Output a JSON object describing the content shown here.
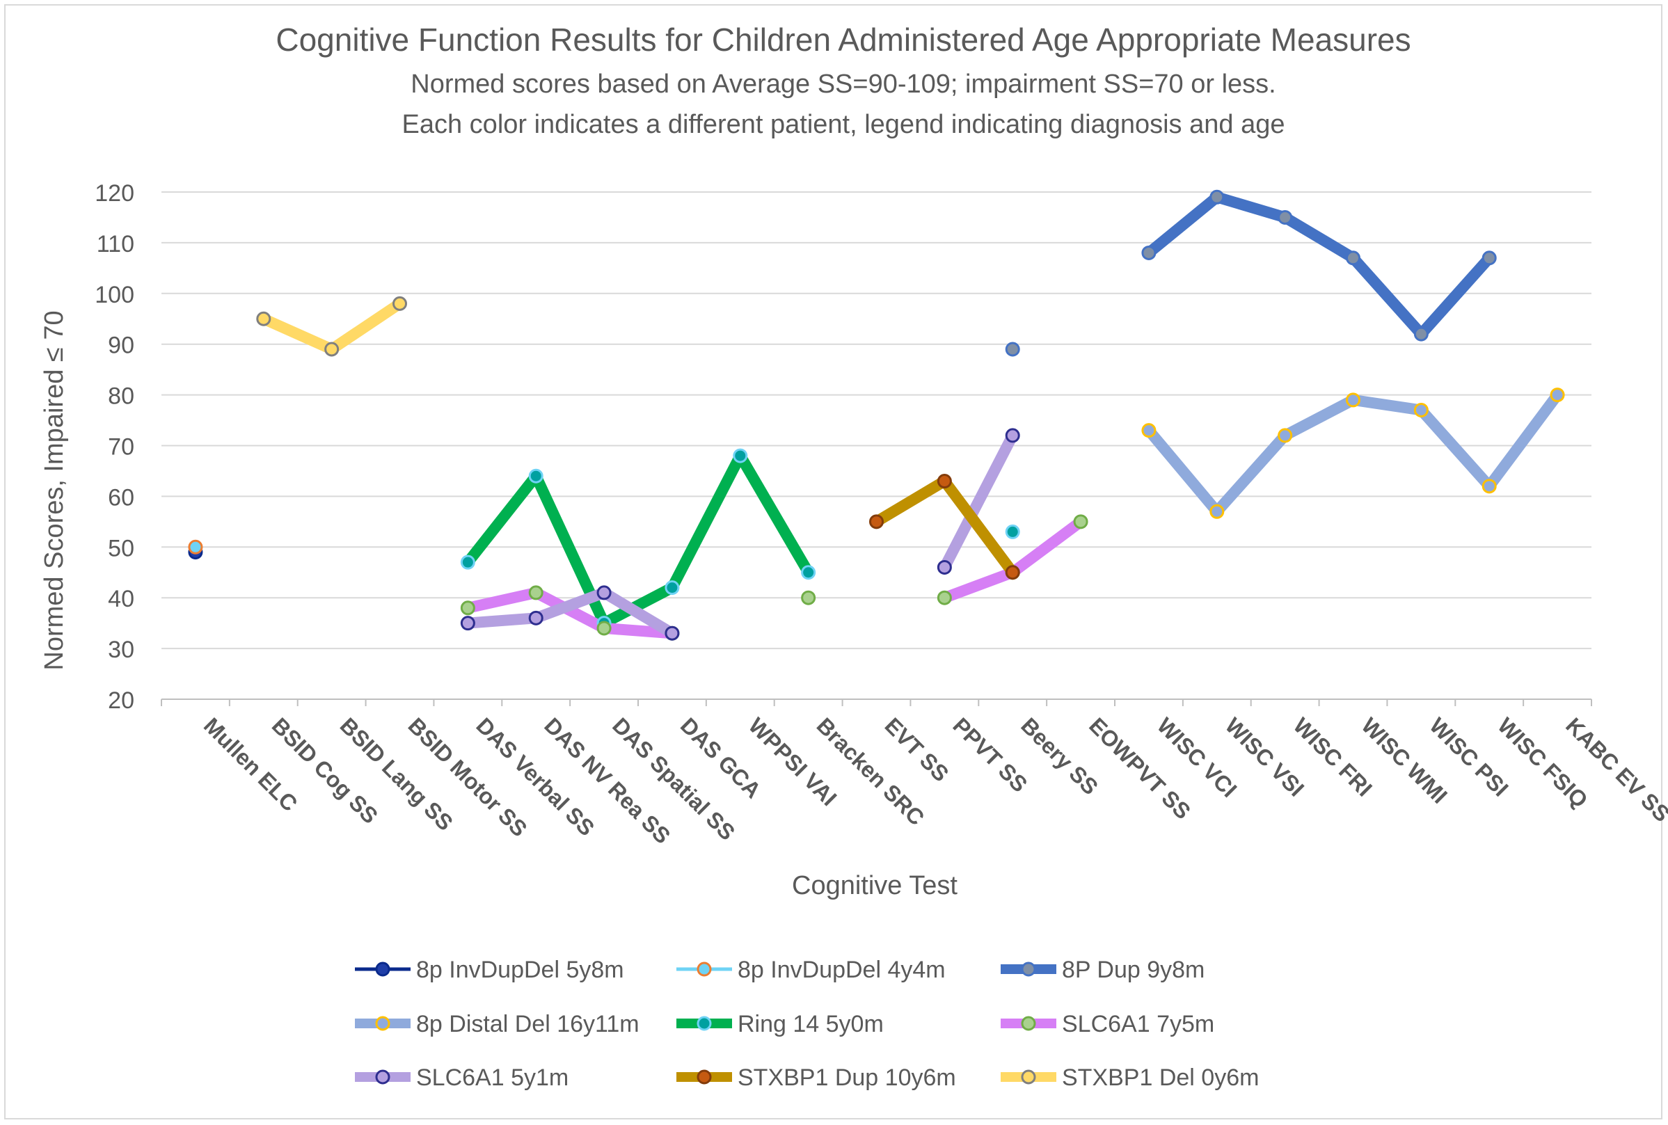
{
  "chart_data": {
    "type": "line",
    "title": "Cognitive Function Results for Children Administered Age Appropriate Measures",
    "subtitle_lines": [
      "Normed scores based on Average SS=90-109; impairment SS=70 or less.",
      "Each color indicates a different patient, legend indicating diagnosis and age"
    ],
    "xlabel": "Cognitive Test",
    "ylabel": "Normed Scores, Impaired ≤ 70",
    "ylim": [
      20,
      120
    ],
    "yticks": [
      "20",
      "30",
      "40",
      "50",
      "60",
      "70",
      "80",
      "90",
      "100",
      "110",
      "120"
    ],
    "grid": true,
    "legend_position": "bottom",
    "categories": [
      "Mullen ELC",
      "BSID Cog SS",
      "BSID Lang SS",
      "BSID Motor SS",
      "DAS Verbal SS",
      "DAS NV Rea SS",
      "DAS Spatial SS",
      "DAS GCA",
      "WPPSI VAI",
      "Bracken SRC",
      "EVT SS",
      "PPVT SS",
      "Beery SS",
      "EOWPVT SS",
      "WISC VCI",
      "WISC VSI",
      "WISC FRI",
      "WISC WMI",
      "WISC PSI",
      "WISC FSIQ",
      "KABC EV SS"
    ],
    "series": [
      {
        "name": "8p InvDupDel 5y8m",
        "color": "#0a2a8c",
        "marker_fill": "#1f3ea8",
        "marker_edge": "#0a2a8c",
        "width": "thin",
        "values": [
          49,
          null,
          null,
          null,
          null,
          null,
          null,
          null,
          null,
          null,
          null,
          null,
          null,
          null,
          null,
          null,
          null,
          null,
          null,
          null,
          null
        ]
      },
      {
        "name": "8p InvDupDel 4y4m",
        "color": "#6fd3f5",
        "marker_fill": "#6fd3f5",
        "marker_edge": "#ed7d31",
        "width": "thin",
        "values": [
          50,
          null,
          null,
          null,
          null,
          null,
          null,
          null,
          null,
          null,
          null,
          null,
          null,
          null,
          null,
          null,
          null,
          null,
          null,
          null,
          null
        ]
      },
      {
        "name": "8P Dup 9y8m",
        "color": "#4472c4",
        "marker_fill": "#7f8fa6",
        "marker_edge": "#4472c4",
        "width": "thick",
        "values": [
          null,
          null,
          null,
          null,
          null,
          null,
          null,
          null,
          null,
          null,
          null,
          null,
          89,
          null,
          108,
          119,
          115,
          107,
          92,
          107,
          null
        ]
      },
      {
        "name": "8p Distal Del 16y11m",
        "color": "#8faadc",
        "marker_fill": "#8faadc",
        "marker_edge": "#ffc000",
        "width": "thick",
        "values": [
          null,
          null,
          null,
          null,
          null,
          null,
          null,
          null,
          null,
          null,
          null,
          null,
          null,
          null,
          73,
          57,
          72,
          79,
          77,
          62,
          80
        ]
      },
      {
        "name": "Ring 14 5y0m",
        "color": "#00b050",
        "marker_fill": "#00a0a0",
        "marker_edge": "#6fd3f5",
        "width": "thick",
        "values": [
          null,
          null,
          null,
          null,
          47,
          64,
          35,
          42,
          68,
          45,
          null,
          null,
          53,
          null,
          null,
          null,
          null,
          null,
          null,
          null,
          null
        ]
      },
      {
        "name": "SLC6A1 7y5m",
        "color": "#d67ff5",
        "marker_fill": "#a9d18e",
        "marker_edge": "#70ad47",
        "width": "thick",
        "values": [
          null,
          null,
          null,
          null,
          38,
          41,
          34,
          33,
          null,
          40,
          null,
          40,
          45,
          55,
          null,
          null,
          null,
          null,
          null,
          null,
          null
        ]
      },
      {
        "name": "SLC6A1 5y1m",
        "color": "#b4a0e0",
        "marker_fill": "#b4a0e0",
        "marker_edge": "#2e2e8f",
        "width": "thick",
        "values": [
          null,
          null,
          null,
          null,
          35,
          36,
          41,
          33,
          null,
          null,
          null,
          46,
          72,
          null,
          null,
          null,
          null,
          null,
          null,
          null,
          null
        ]
      },
      {
        "name": "STXBP1 Dup 10y6m",
        "color": "#bf9000",
        "marker_fill": "#c55a11",
        "marker_edge": "#833c0b",
        "width": "thick",
        "values": [
          null,
          null,
          null,
          null,
          null,
          null,
          null,
          null,
          null,
          null,
          55,
          63,
          45,
          null,
          null,
          null,
          null,
          null,
          null,
          null,
          null
        ]
      },
      {
        "name": "STXBP1 Del 0y6m",
        "color": "#ffd966",
        "marker_fill": "#ffd966",
        "marker_edge": "#7f7f7f",
        "width": "thick",
        "values": [
          null,
          95,
          89,
          98,
          null,
          null,
          null,
          null,
          null,
          null,
          null,
          null,
          null,
          null,
          null,
          null,
          null,
          null,
          null,
          null,
          null
        ]
      }
    ]
  }
}
